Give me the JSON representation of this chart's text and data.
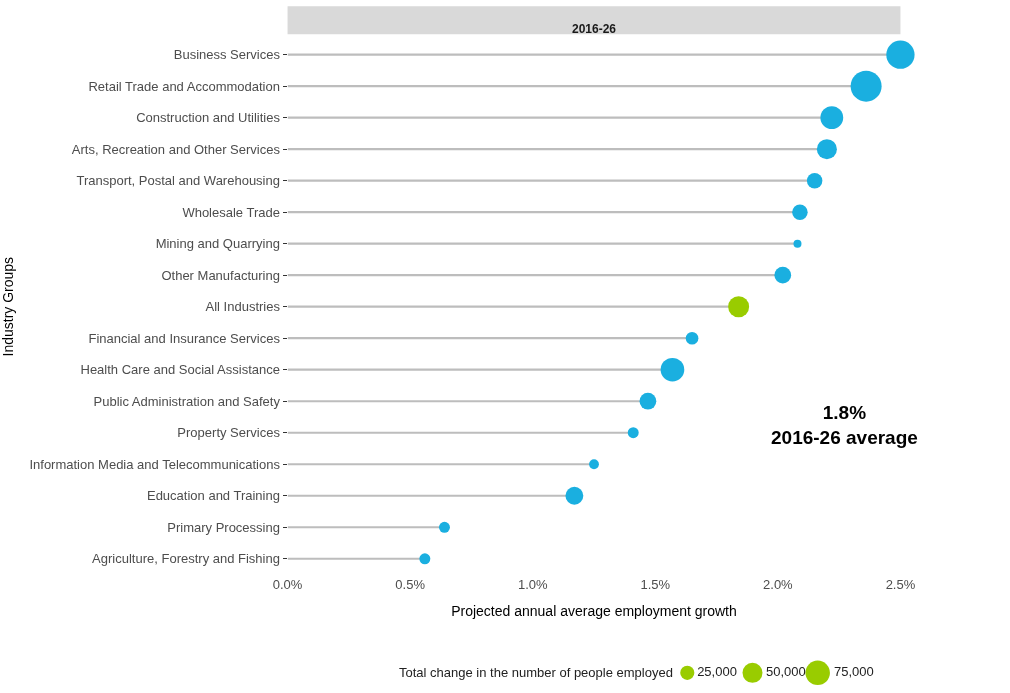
{
  "chart_data": {
    "type": "lollipop",
    "orientation": "horizontal",
    "title": "2016-26",
    "xlabel": "Projected annual average employment growth",
    "ylabel": "Industry Groups",
    "legend_title": "Total change in the number of people employed",
    "categories": [
      "Business Services",
      "Retail Trade and Accommodation",
      "Construction and Utilities",
      "Arts, Recreation and Other Services",
      "Transport, Postal and Warehousing",
      "Wholesale Trade",
      "Mining and Quarrying",
      "Other Manufacturing",
      "All Industries",
      "Financial and Insurance Services",
      "Health Care and Social Assistance",
      "Public Administration and Safety",
      "Property Services",
      "Information Media and Telecommunications",
      "Education and Training",
      "Primary Processing",
      "Agriculture, Forestry and Fishing"
    ],
    "values": [
      2.5,
      2.36,
      2.22,
      2.2,
      2.15,
      2.09,
      2.08,
      2.02,
      1.84,
      1.65,
      1.57,
      1.47,
      1.41,
      1.25,
      1.17,
      0.64,
      0.56
    ],
    "sizes": [
      100000,
      120000,
      65000,
      50000,
      30000,
      30000,
      8000,
      35000,
      55000,
      20000,
      70000,
      35000,
      15000,
      12000,
      40000,
      15000,
      15000
    ],
    "size_legend": [
      {
        "value": 25000,
        "label": "25,000"
      },
      {
        "value": 50000,
        "label": "50,000"
      },
      {
        "value": 75000,
        "label": "75,000"
      }
    ],
    "colors": [
      "#1aafe0",
      "#1aafe0",
      "#1aafe0",
      "#1aafe0",
      "#1aafe0",
      "#1aafe0",
      "#1aafe0",
      "#1aafe0",
      "#99cc00",
      "#1aafe0",
      "#1aafe0",
      "#1aafe0",
      "#1aafe0",
      "#1aafe0",
      "#1aafe0",
      "#1aafe0",
      "#1aafe0"
    ],
    "xlim": [
      0,
      2.5
    ],
    "xticks": [
      {
        "value": 0,
        "label": "0.0%"
      },
      {
        "value": 0.5,
        "label": "0.5%"
      },
      {
        "value": 1.0,
        "label": "1.0%"
      },
      {
        "value": 1.5,
        "label": "1.5%"
      },
      {
        "value": 2.0,
        "label": "2.0%"
      },
      {
        "value": 2.5,
        "label": "2.5%"
      }
    ],
    "grid": false,
    "marker": "circle",
    "annotations": [
      "1.8%\n2016-26 average"
    ]
  }
}
